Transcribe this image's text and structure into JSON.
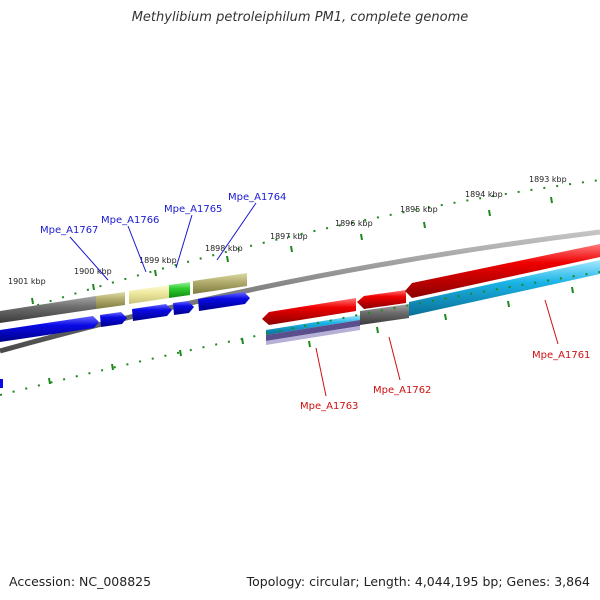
{
  "title": "Methylibium petroleiphilum PM1, complete genome",
  "footer": {
    "accession": "Accession: NC_008825",
    "summary": "Topology: circular; Length: 4,044,195 bp; Genes: 3,864"
  },
  "scale_labels": [
    "1901 kbp",
    "1900 kbp",
    "1899 kbp",
    "1898 kbp",
    "1897 kbp",
    "1896 kbp",
    "1895 kbp",
    "1894 kbp",
    "1893 kbp"
  ],
  "genes_top": [
    "Mpe_A1767",
    "Mpe_A1766",
    "Mpe_A1765",
    "Mpe_A1764"
  ],
  "genes_bottom": [
    "Mpe_A1763",
    "Mpe_A1762",
    "Mpe_A1761"
  ],
  "colors": {
    "top_label": "#1a1ad0",
    "bottom_label": "#d01010",
    "tick": "#1e8a1e",
    "backbone": "#808080",
    "blue_cds": "#0a0ae6",
    "red_cds": "#ee0000",
    "cyan_cds": "#1ab4e6",
    "gray_feature": "#6e6e6e",
    "olive_feature": "#b5b070",
    "pale_feature": "#f0eaa0",
    "green_feature": "#2ecc2e"
  }
}
